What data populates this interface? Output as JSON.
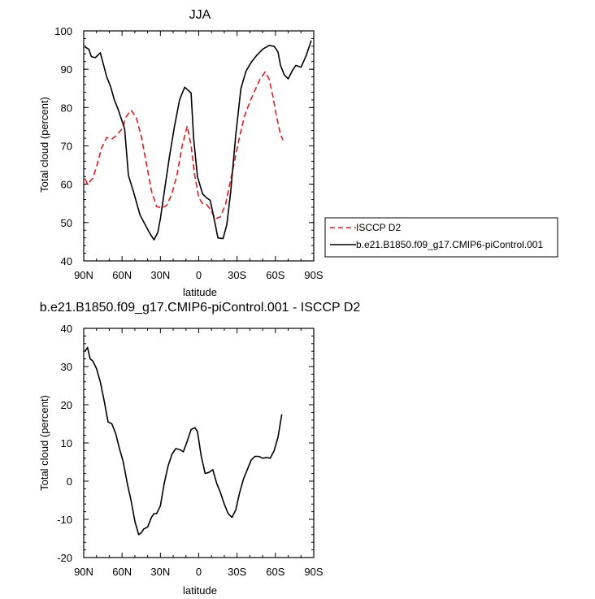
{
  "chart_data": [
    {
      "type": "line",
      "title": "JJA",
      "xlabel": "latitude",
      "ylabel": "Total cloud (percent)",
      "xlim": [
        90,
        -90
      ],
      "ylim": [
        40,
        100
      ],
      "x_tick_values": [
        90,
        60,
        30,
        0,
        -30,
        -60,
        -90
      ],
      "x_tick_labels": [
        "90N",
        "60N",
        "30N",
        "0",
        "30S",
        "60S",
        "90S"
      ],
      "y_tick_values": [
        40,
        50,
        60,
        70,
        80,
        90,
        100
      ],
      "y_tick_labels": [
        "40",
        "50",
        "60",
        "70",
        "80",
        "90",
        "100"
      ],
      "grid": false,
      "legend_position": "right",
      "series": [
        {
          "name": "ISCCP D2",
          "color": "#e8191b",
          "dash": "dashed",
          "x": [
            89,
            87,
            83,
            80,
            76,
            72,
            68,
            64,
            60,
            57,
            53,
            49,
            45,
            41,
            37,
            33,
            29,
            25,
            21,
            17,
            13,
            9,
            6,
            3,
            0,
            -3,
            -6,
            -9,
            -13,
            -17,
            -21,
            -24,
            -28,
            -32,
            -36,
            -40,
            -44,
            -48,
            -52,
            -55,
            -58,
            -61,
            -64,
            -66
          ],
          "values": [
            61.5,
            60,
            61.5,
            64.5,
            69.5,
            72.2,
            71.8,
            72.8,
            74.5,
            77.5,
            79.3,
            77.5,
            72.5,
            65.5,
            58.3,
            54.2,
            53.8,
            54.5,
            57.5,
            62.5,
            70,
            75.2,
            70,
            62,
            56.5,
            55,
            54.8,
            53.5,
            51,
            51.5,
            54.8,
            59.5,
            66,
            72.5,
            78,
            81.5,
            84.5,
            87.5,
            89.3,
            87.5,
            83,
            77.5,
            73,
            71.5
          ]
        },
        {
          "name": "b.e21.B1850.f09_g17.CMIP6-piControl.001",
          "color": "#000000",
          "dash": "solid",
          "x": [
            89,
            86,
            84,
            81,
            77,
            72,
            69,
            66,
            63,
            58,
            55,
            51,
            46,
            42,
            38,
            35,
            32,
            30,
            27,
            23,
            19,
            15,
            11,
            6,
            4,
            1,
            -3,
            -6,
            -9,
            -12,
            -15,
            -19,
            -22,
            -25,
            -29,
            -33,
            -37,
            -41,
            -45,
            -50,
            -55,
            -59,
            -62,
            -64,
            -67,
            -70,
            -73,
            -76,
            -80,
            -84,
            -88
          ],
          "values": [
            95.8,
            95.2,
            93.3,
            93,
            94.3,
            88,
            85.5,
            82,
            79.5,
            74.5,
            62.3,
            58,
            52,
            49.5,
            47,
            45.5,
            47.5,
            51,
            58,
            67,
            75,
            82,
            85.3,
            83.8,
            72,
            62,
            57.5,
            56.5,
            55.8,
            51,
            46,
            45.8,
            49.5,
            58,
            73,
            85,
            89.5,
            91.8,
            93.5,
            95.2,
            96.2,
            96,
            94.5,
            91,
            88.5,
            87.5,
            89.5,
            91,
            90.5,
            93.5,
            97.5
          ]
        }
      ]
    },
    {
      "type": "line",
      "title": "b.e21.B1850.f09_g17.CMIP6-piControl.001 - ISCCP D2",
      "xlabel": "latitude",
      "ylabel": "Total cloud (percent)",
      "xlim": [
        90,
        -90
      ],
      "ylim": [
        -20,
        40
      ],
      "x_tick_values": [
        90,
        60,
        30,
        0,
        -30,
        -60,
        -90
      ],
      "x_tick_labels": [
        "90N",
        "60N",
        "30N",
        "0",
        "30S",
        "60S",
        "90S"
      ],
      "y_tick_values": [
        -20,
        -10,
        0,
        10,
        20,
        30,
        40
      ],
      "y_tick_labels": [
        "-20",
        "-10",
        "0",
        "10",
        "20",
        "30",
        "40"
      ],
      "grid": false,
      "series": [
        {
          "color": "#000000",
          "dash": "solid",
          "x": [
            89,
            87,
            85,
            83,
            80,
            77,
            74,
            71,
            68,
            65,
            62,
            59,
            56,
            53,
            50,
            47,
            45,
            43,
            40,
            37,
            35,
            33,
            30,
            27,
            24,
            21,
            18,
            15,
            12,
            9,
            6,
            3,
            1,
            -2,
            -5,
            -8,
            -11,
            -14,
            -17,
            -20,
            -23,
            -26,
            -29,
            -32,
            -35,
            -38,
            -41,
            -44,
            -47,
            -50,
            -53,
            -56,
            -59,
            -62,
            -65
          ],
          "values": [
            34,
            35,
            32,
            31.5,
            29.5,
            26,
            21,
            15.5,
            15,
            12.5,
            8.5,
            5,
            -0.5,
            -5,
            -10.5,
            -14,
            -13.5,
            -12.5,
            -12,
            -9.5,
            -8.5,
            -8.5,
            -6.5,
            -0.5,
            4,
            7,
            8.5,
            8.3,
            7.7,
            10.5,
            13.5,
            14,
            13,
            6.5,
            2,
            2.3,
            3,
            -0.5,
            -3,
            -6,
            -8.5,
            -9.5,
            -7.5,
            -3,
            0.5,
            3,
            5.5,
            6.5,
            6.5,
            6,
            6.2,
            6,
            8,
            11.5,
            17.5
          ]
        }
      ]
    }
  ]
}
